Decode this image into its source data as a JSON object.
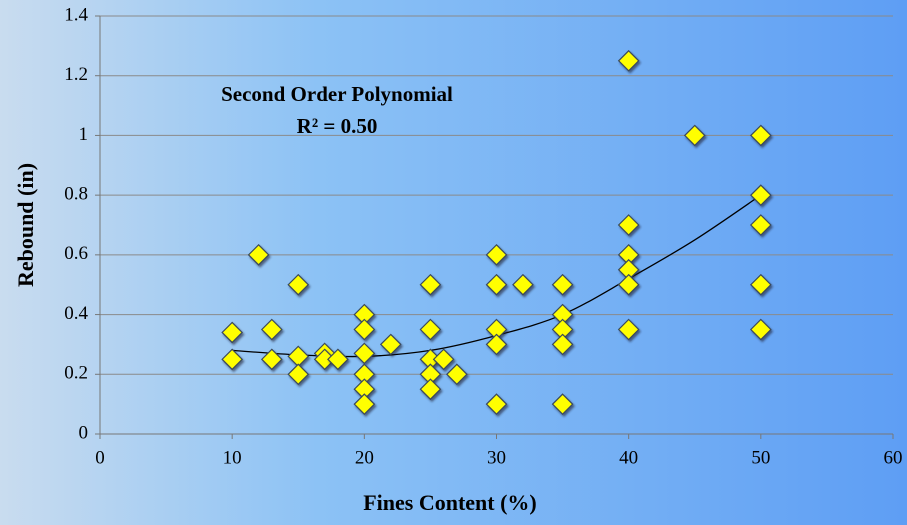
{
  "chart_data": {
    "type": "scatter",
    "xlabel": "Fines Content (%)",
    "ylabel": "Rebound (in)",
    "annotations": [
      "Second Order Polynomial",
      "R² = 0.50"
    ],
    "series": [
      {
        "color": "#ffff00",
        "x": [
          10,
          10,
          12,
          13,
          13,
          15,
          15,
          15,
          17,
          17,
          18,
          20,
          20,
          20,
          20,
          20,
          20,
          22,
          25,
          25,
          25,
          25,
          25,
          26,
          27,
          30,
          30,
          30,
          30,
          30,
          32,
          35,
          35,
          35,
          35,
          35,
          40,
          40,
          40,
          40,
          40,
          40,
          45,
          50,
          50,
          50,
          50,
          50
        ],
        "values": [
          0.25,
          0.34,
          0.6,
          0.35,
          0.25,
          0.5,
          0.26,
          0.2,
          0.27,
          0.25,
          0.25,
          0.4,
          0.35,
          0.27,
          0.2,
          0.15,
          0.1,
          0.3,
          0.5,
          0.35,
          0.25,
          0.2,
          0.15,
          0.25,
          0.2,
          0.6,
          0.5,
          0.35,
          0.3,
          0.1,
          0.5,
          0.5,
          0.4,
          0.35,
          0.3,
          0.1,
          1.25,
          0.7,
          0.6,
          0.55,
          0.5,
          0.35,
          1.0,
          1.0,
          0.8,
          0.7,
          0.5,
          0.35
        ]
      }
    ],
    "trendline": {
      "color": "#000000",
      "x": [
        10,
        15,
        20,
        25,
        30,
        35,
        40,
        45,
        50
      ],
      "values": [
        0.28,
        0.265,
        0.26,
        0.28,
        0.33,
        0.4,
        0.52,
        0.65,
        0.8
      ]
    },
    "xlim": [
      0,
      60
    ],
    "xticks": [
      0,
      10,
      20,
      30,
      40,
      50,
      60
    ],
    "ylim": [
      0,
      1.4
    ],
    "yticks": [
      0,
      0.2,
      0.4,
      0.6,
      0.8,
      1,
      1.2,
      1.4
    ],
    "grid": true
  }
}
